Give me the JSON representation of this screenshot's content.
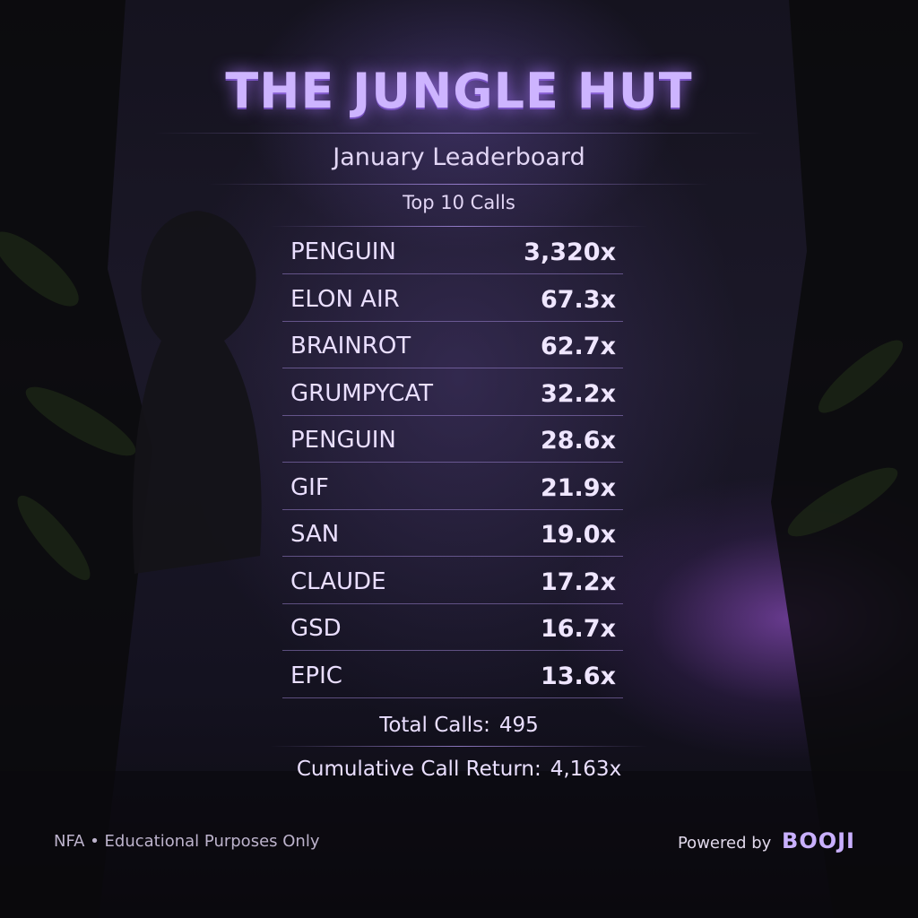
{
  "header": {
    "title": "THE JUNGLE HUT",
    "subtitle": "January Leaderboard",
    "section": "Top 10 Calls"
  },
  "rows": [
    {
      "name": "PENGUIN",
      "return": "3,320x"
    },
    {
      "name": "ELON AIR",
      "return": "67.3x"
    },
    {
      "name": "BRAINROT",
      "return": "62.7x"
    },
    {
      "name": "GRUMPYCAT",
      "return": "32.2x"
    },
    {
      "name": "PENGUIN",
      "return": "28.6x"
    },
    {
      "name": "GIF",
      "return": "21.9x"
    },
    {
      "name": "SAN",
      "return": "19.0x"
    },
    {
      "name": "CLAUDE",
      "return": "17.2x"
    },
    {
      "name": "GSD",
      "return": "16.7x"
    },
    {
      "name": "EPIC",
      "return": "13.6x"
    }
  ],
  "summary": {
    "total_calls": {
      "label": "Total Calls:",
      "value": "495"
    },
    "cumulative_return": {
      "label": "Cumulative Call Return:",
      "value": "4,163x"
    }
  },
  "footer": {
    "disclaimer": "NFA • Educational Purposes Only",
    "powered_by": "Powered by",
    "brand": "BOOJI"
  }
}
